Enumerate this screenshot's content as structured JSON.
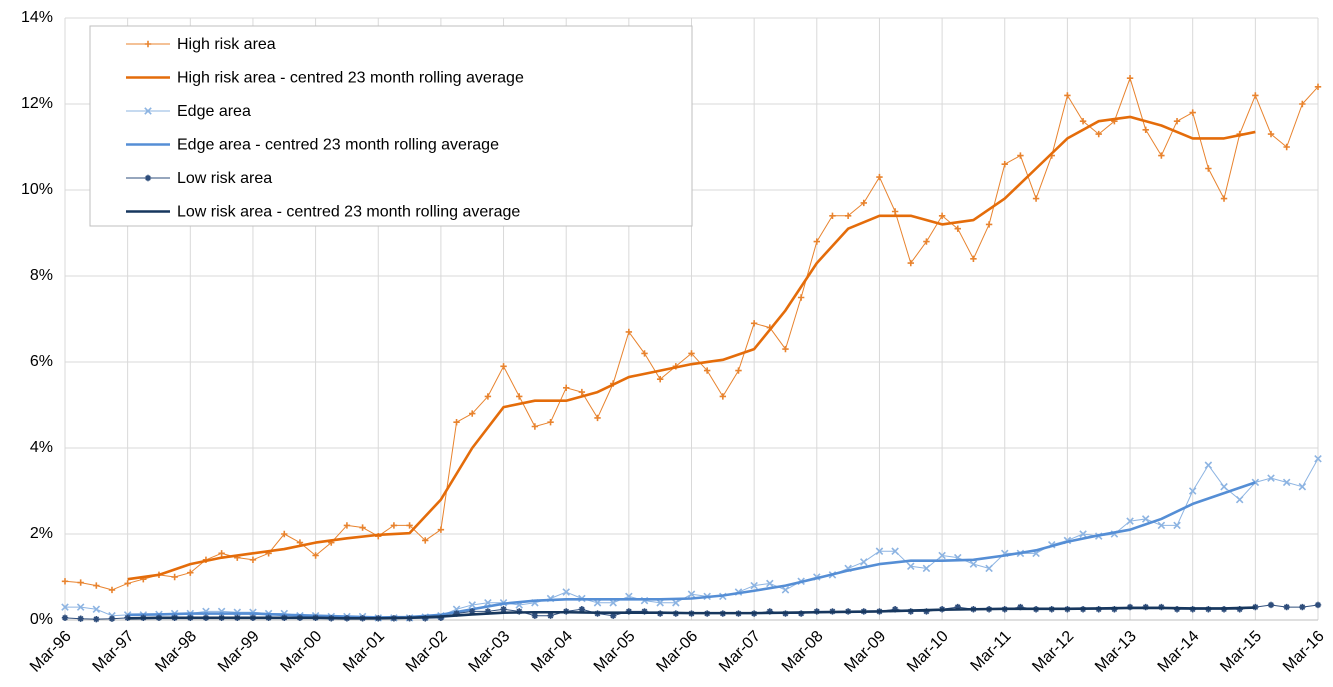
{
  "chart_data": {
    "type": "line",
    "xlim": [
      0,
      240
    ],
    "xticks": [
      {
        "value": 0,
        "label": "Mar-96"
      },
      {
        "value": 12,
        "label": "Mar-97"
      },
      {
        "value": 24,
        "label": "Mar-98"
      },
      {
        "value": 36,
        "label": "Mar-99"
      },
      {
        "value": 48,
        "label": "Mar-00"
      },
      {
        "value": 60,
        "label": "Mar-01"
      },
      {
        "value": 72,
        "label": "Mar-02"
      },
      {
        "value": 84,
        "label": "Mar-03"
      },
      {
        "value": 96,
        "label": "Mar-04"
      },
      {
        "value": 108,
        "label": "Mar-05"
      },
      {
        "value": 120,
        "label": "Mar-06"
      },
      {
        "value": 132,
        "label": "Mar-07"
      },
      {
        "value": 144,
        "label": "Mar-08"
      },
      {
        "value": 156,
        "label": "Mar-09"
      },
      {
        "value": 168,
        "label": "Mar-10"
      },
      {
        "value": 180,
        "label": "Mar-11"
      },
      {
        "value": 192,
        "label": "Mar-12"
      },
      {
        "value": 204,
        "label": "Mar-13"
      },
      {
        "value": 216,
        "label": "Mar-14"
      },
      {
        "value": 228,
        "label": "Mar-15"
      },
      {
        "value": 240,
        "label": "Mar-16"
      }
    ],
    "ylim": [
      0,
      14
    ],
    "yticks": [
      {
        "value": 0,
        "label": "0%"
      },
      {
        "value": 2,
        "label": "2%"
      },
      {
        "value": 4,
        "label": "4%"
      },
      {
        "value": 6,
        "label": "6%"
      },
      {
        "value": 8,
        "label": "8%"
      },
      {
        "value": 10,
        "label": "10%"
      },
      {
        "value": 12,
        "label": "12%"
      },
      {
        "value": 14,
        "label": "14%"
      }
    ],
    "grid": true,
    "legend": "top-left",
    "series": [
      {
        "name": "High risk area",
        "color": "#e8832e",
        "marker": "plus",
        "x": [
          0,
          3,
          6,
          9,
          12,
          15,
          18,
          21,
          24,
          27,
          30,
          33,
          36,
          39,
          42,
          45,
          48,
          51,
          54,
          57,
          60,
          63,
          66,
          69,
          72,
          75,
          78,
          81,
          84,
          87,
          90,
          93,
          96,
          99,
          102,
          105,
          108,
          111,
          114,
          117,
          120,
          123,
          126,
          129,
          132,
          135,
          138,
          141,
          144,
          147,
          150,
          153,
          156,
          159,
          162,
          165,
          168,
          171,
          174,
          177,
          180,
          183,
          186,
          189,
          192,
          195,
          198,
          201,
          204,
          207,
          210,
          213,
          216,
          219,
          222,
          225,
          228,
          231,
          234,
          237,
          240
        ],
        "values": [
          0.9,
          0.87,
          0.8,
          0.7,
          0.85,
          0.95,
          1.05,
          1.0,
          1.1,
          1.4,
          1.55,
          1.45,
          1.4,
          1.55,
          2.0,
          1.8,
          1.5,
          1.8,
          2.2,
          2.15,
          1.95,
          2.2,
          2.2,
          1.85,
          2.1,
          4.6,
          4.8,
          5.2,
          5.9,
          5.2,
          4.5,
          4.6,
          5.4,
          5.3,
          4.7,
          5.5,
          6.7,
          6.2,
          5.6,
          5.9,
          6.2,
          5.8,
          5.2,
          5.8,
          6.9,
          6.8,
          6.3,
          7.5,
          8.8,
          9.4,
          9.4,
          9.7,
          10.3,
          9.5,
          8.3,
          8.8,
          9.4,
          9.1,
          8.4,
          9.2,
          10.6,
          10.8,
          9.8,
          10.8,
          12.2,
          11.6,
          11.3,
          11.6,
          12.6,
          11.4,
          10.8,
          11.6,
          11.8,
          10.5,
          9.8,
          11.3,
          12.2,
          11.3,
          11.0,
          12.0,
          12.4
        ]
      },
      {
        "name": "High risk area - centred 23 month rolling average",
        "color": "#e46c0a",
        "marker": "none",
        "x": [
          12,
          18,
          24,
          30,
          36,
          42,
          48,
          54,
          60,
          66,
          72,
          78,
          84,
          90,
          96,
          102,
          108,
          114,
          120,
          126,
          132,
          138,
          144,
          150,
          156,
          162,
          168,
          174,
          180,
          186,
          192,
          198,
          204,
          210,
          216,
          222,
          228
        ],
        "values": [
          0.95,
          1.05,
          1.3,
          1.45,
          1.55,
          1.65,
          1.8,
          1.9,
          1.98,
          2.02,
          2.8,
          4.0,
          4.95,
          5.1,
          5.1,
          5.3,
          5.65,
          5.8,
          5.95,
          6.05,
          6.3,
          7.2,
          8.3,
          9.1,
          9.4,
          9.4,
          9.2,
          9.3,
          9.8,
          10.5,
          11.2,
          11.6,
          11.7,
          11.5,
          11.2,
          11.2,
          11.35
        ]
      },
      {
        "name": "Edge area",
        "color": "#8db4e2",
        "marker": "cross",
        "x": [
          0,
          3,
          6,
          9,
          12,
          15,
          18,
          21,
          24,
          27,
          30,
          33,
          36,
          39,
          42,
          45,
          48,
          51,
          54,
          57,
          60,
          63,
          66,
          69,
          72,
          75,
          78,
          81,
          84,
          87,
          90,
          93,
          96,
          99,
          102,
          105,
          108,
          111,
          114,
          117,
          120,
          123,
          126,
          129,
          132,
          135,
          138,
          141,
          144,
          147,
          150,
          153,
          156,
          159,
          162,
          165,
          168,
          171,
          174,
          177,
          180,
          183,
          186,
          189,
          192,
          195,
          198,
          201,
          204,
          207,
          210,
          213,
          216,
          219,
          222,
          225,
          228,
          231,
          234,
          237,
          240
        ],
        "values": [
          0.3,
          0.3,
          0.25,
          0.1,
          0.12,
          0.12,
          0.13,
          0.15,
          0.15,
          0.2,
          0.2,
          0.18,
          0.18,
          0.15,
          0.15,
          0.1,
          0.1,
          0.08,
          0.08,
          0.08,
          0.05,
          0.05,
          0.05,
          0.07,
          0.1,
          0.25,
          0.35,
          0.4,
          0.4,
          0.35,
          0.4,
          0.5,
          0.65,
          0.5,
          0.4,
          0.4,
          0.55,
          0.45,
          0.4,
          0.4,
          0.6,
          0.55,
          0.55,
          0.65,
          0.8,
          0.85,
          0.7,
          0.9,
          1.0,
          1.05,
          1.2,
          1.35,
          1.6,
          1.6,
          1.25,
          1.2,
          1.5,
          1.45,
          1.3,
          1.2,
          1.55,
          1.55,
          1.55,
          1.75,
          1.85,
          2.0,
          1.95,
          2.0,
          2.3,
          2.35,
          2.2,
          2.2,
          3.0,
          3.6,
          3.1,
          2.8,
          3.2,
          3.3,
          3.2,
          3.1,
          3.75
        ]
      },
      {
        "name": "Edge area - centred 23 month rolling average",
        "color": "#558ed5",
        "marker": "none",
        "x": [
          12,
          18,
          24,
          30,
          36,
          42,
          48,
          54,
          60,
          66,
          72,
          78,
          84,
          90,
          96,
          102,
          108,
          114,
          120,
          126,
          132,
          138,
          144,
          150,
          156,
          162,
          168,
          174,
          180,
          186,
          192,
          198,
          204,
          210,
          216,
          222,
          228
        ],
        "values": [
          0.12,
          0.13,
          0.15,
          0.15,
          0.15,
          0.12,
          0.1,
          0.08,
          0.06,
          0.07,
          0.12,
          0.25,
          0.38,
          0.45,
          0.48,
          0.48,
          0.48,
          0.48,
          0.5,
          0.57,
          0.68,
          0.8,
          0.97,
          1.15,
          1.3,
          1.38,
          1.38,
          1.4,
          1.5,
          1.62,
          1.82,
          1.97,
          2.1,
          2.35,
          2.7,
          2.95,
          3.2
        ]
      },
      {
        "name": "Low risk area",
        "color": "#2e4d7b",
        "marker": "star",
        "x": [
          0,
          3,
          6,
          9,
          12,
          15,
          18,
          21,
          24,
          27,
          30,
          33,
          36,
          39,
          42,
          45,
          48,
          51,
          54,
          57,
          60,
          63,
          66,
          69,
          72,
          75,
          78,
          81,
          84,
          87,
          90,
          93,
          96,
          99,
          102,
          105,
          108,
          111,
          114,
          117,
          120,
          123,
          126,
          129,
          132,
          135,
          138,
          141,
          144,
          147,
          150,
          153,
          156,
          159,
          162,
          165,
          168,
          171,
          174,
          177,
          180,
          183,
          186,
          189,
          192,
          195,
          198,
          201,
          204,
          207,
          210,
          213,
          216,
          219,
          222,
          225,
          228,
          231,
          234,
          237,
          240
        ],
        "values": [
          0.05,
          0.03,
          0.02,
          0.03,
          0.05,
          0.05,
          0.05,
          0.05,
          0.05,
          0.05,
          0.05,
          0.05,
          0.05,
          0.05,
          0.05,
          0.05,
          0.05,
          0.04,
          0.04,
          0.04,
          0.04,
          0.04,
          0.04,
          0.04,
          0.05,
          0.15,
          0.2,
          0.2,
          0.25,
          0.2,
          0.1,
          0.1,
          0.2,
          0.25,
          0.15,
          0.1,
          0.2,
          0.2,
          0.15,
          0.15,
          0.15,
          0.15,
          0.15,
          0.15,
          0.15,
          0.2,
          0.15,
          0.15,
          0.2,
          0.2,
          0.2,
          0.2,
          0.2,
          0.25,
          0.2,
          0.2,
          0.25,
          0.3,
          0.25,
          0.25,
          0.25,
          0.3,
          0.25,
          0.25,
          0.25,
          0.25,
          0.25,
          0.25,
          0.3,
          0.3,
          0.3,
          0.25,
          0.25,
          0.25,
          0.25,
          0.25,
          0.3,
          0.35,
          0.3,
          0.3,
          0.35
        ]
      },
      {
        "name": "Low risk area - centred 23 month rolling average",
        "color": "#17375e",
        "marker": "none",
        "x": [
          12,
          18,
          24,
          30,
          36,
          42,
          48,
          54,
          60,
          66,
          72,
          78,
          84,
          90,
          96,
          102,
          108,
          114,
          120,
          126,
          132,
          138,
          144,
          150,
          156,
          162,
          168,
          174,
          180,
          186,
          192,
          198,
          204,
          210,
          216,
          222,
          228
        ],
        "values": [
          0.04,
          0.05,
          0.05,
          0.05,
          0.05,
          0.05,
          0.05,
          0.04,
          0.04,
          0.05,
          0.08,
          0.13,
          0.17,
          0.18,
          0.18,
          0.17,
          0.17,
          0.17,
          0.16,
          0.16,
          0.16,
          0.17,
          0.18,
          0.19,
          0.2,
          0.22,
          0.24,
          0.25,
          0.26,
          0.26,
          0.26,
          0.27,
          0.28,
          0.28,
          0.27,
          0.27,
          0.29
        ]
      }
    ]
  }
}
